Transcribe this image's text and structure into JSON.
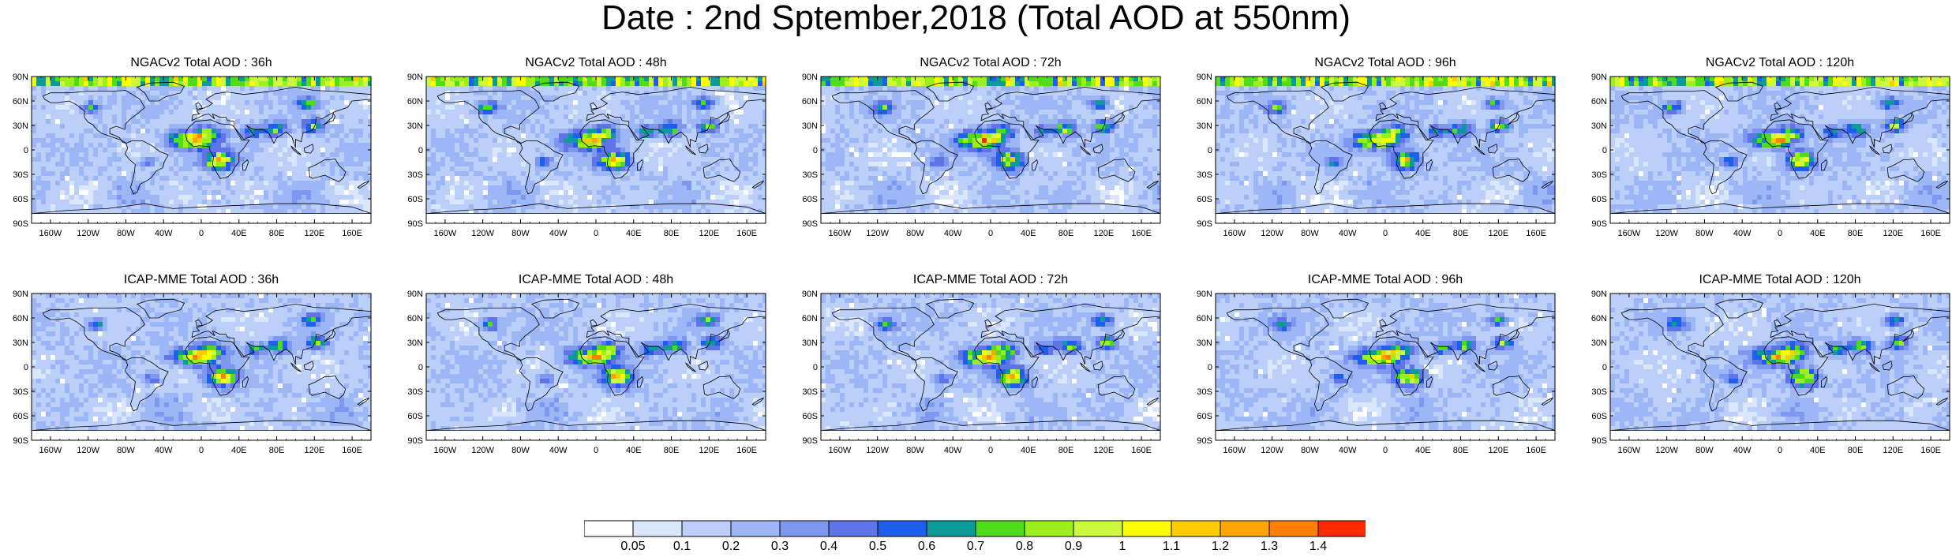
{
  "title": "Date : 2nd Sptember,2018 (Total AOD at 550nm)",
  "panels": [
    {
      "title": "NGACv2 Total AOD : 36h",
      "model": "NGACv2",
      "lead": "36h"
    },
    {
      "title": "NGACv2 Total AOD : 48h",
      "model": "NGACv2",
      "lead": "48h"
    },
    {
      "title": "NGACv2 Total AOD : 72h",
      "model": "NGACv2",
      "lead": "72h"
    },
    {
      "title": "NGACv2 Total AOD : 96h",
      "model": "NGACv2",
      "lead": "96h"
    },
    {
      "title": "NGACv2 Total AOD : 120h",
      "model": "NGACv2",
      "lead": "120h"
    },
    {
      "title": "ICAP-MME Total AOD : 36h",
      "model": "ICAP-MME",
      "lead": "36h"
    },
    {
      "title": "ICAP-MME Total AOD : 48h",
      "model": "ICAP-MME",
      "lead": "48h"
    },
    {
      "title": "ICAP-MME Total AOD : 72h",
      "model": "ICAP-MME",
      "lead": "72h"
    },
    {
      "title": "ICAP-MME Total AOD : 96h",
      "model": "ICAP-MME",
      "lead": "96h"
    },
    {
      "title": "ICAP-MME Total AOD : 120h",
      "model": "ICAP-MME",
      "lead": "120h"
    }
  ],
  "lat_labels": [
    "90N",
    "60N",
    "30N",
    "0",
    "30S",
    "60S",
    "90S"
  ],
  "lon_labels": [
    "160W",
    "120W",
    "80W",
    "40W",
    "0",
    "40E",
    "80E",
    "120E",
    "160E"
  ],
  "colorbar": {
    "labels": [
      "0.05",
      "0.1",
      "0.2",
      "0.3",
      "0.4",
      "0.5",
      "0.6",
      "0.7",
      "0.8",
      "0.9",
      "1",
      "1.1",
      "1.2",
      "1.3",
      "1.4"
    ],
    "colors": [
      "#ffffff",
      "#dae6fb",
      "#bccff8",
      "#9db6f5",
      "#7e98f0",
      "#5e74e8",
      "#1f5fee",
      "#0d9a98",
      "#4fdb1e",
      "#9aef1c",
      "#ccf840",
      "#ffff00",
      "#ffcc00",
      "#ffa500",
      "#ff7f00",
      "#ff2a00"
    ]
  }
}
